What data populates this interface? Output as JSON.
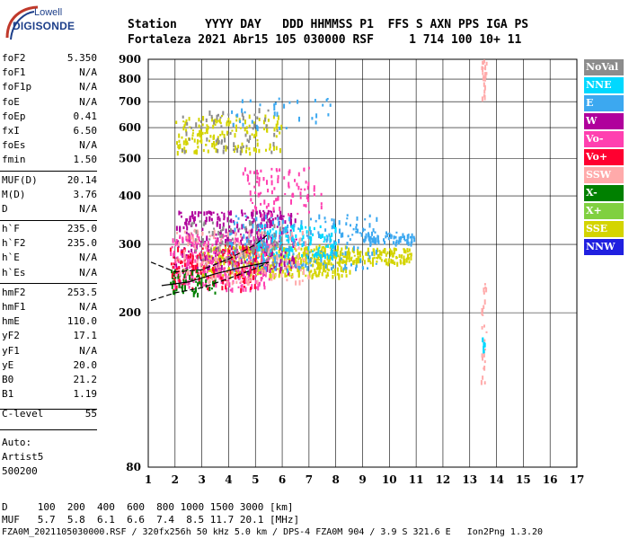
{
  "logo": {
    "top": "Lowell",
    "main": "DIGISONDE"
  },
  "header": {
    "line1": "Station    YYYY DAY   DDD HHMMSS P1  FFS S AXN PPS IGA PS",
    "line2": "Fortaleza 2021 Abr15 105 030000 RSF     1 714 100 10+ 11"
  },
  "params": {
    "group1": [
      {
        "name": "foF2",
        "value": "5.350"
      },
      {
        "name": "foF1",
        "value": "N/A"
      },
      {
        "name": "foF1p",
        "value": "N/A"
      },
      {
        "name": "foE",
        "value": "N/A"
      },
      {
        "name": "foEp",
        "value": "0.41"
      },
      {
        "name": "fxI",
        "value": "6.50"
      },
      {
        "name": "foEs",
        "value": "N/A"
      },
      {
        "name": "fmin",
        "value": "1.50"
      }
    ],
    "group2": [
      {
        "name": "MUF(D)",
        "value": "20.14"
      },
      {
        "name": "M(D)",
        "value": "3.76"
      },
      {
        "name": "D",
        "value": "N/A"
      }
    ],
    "group3": [
      {
        "name": "h`F",
        "value": "235.0"
      },
      {
        "name": "h`F2",
        "value": "235.0"
      },
      {
        "name": "h`E",
        "value": "N/A"
      },
      {
        "name": "h`Es",
        "value": "N/A"
      }
    ],
    "group4": [
      {
        "name": "hmF2",
        "value": "253.5"
      },
      {
        "name": "hmF1",
        "value": "N/A"
      },
      {
        "name": "hmE",
        "value": "110.0"
      },
      {
        "name": "yF2",
        "value": "17.1"
      },
      {
        "name": "yF1",
        "value": "N/A"
      },
      {
        "name": "yE",
        "value": "20.0"
      },
      {
        "name": "B0",
        "value": "21.2"
      },
      {
        "name": "B1",
        "value": "1.19"
      }
    ],
    "clevel": {
      "name": "C-level",
      "value": "55"
    },
    "auto": [
      "Auto:",
      "Artist5",
      "500200"
    ]
  },
  "legend": [
    {
      "label": "NoVal",
      "color": "#8c8c8c"
    },
    {
      "label": "NNE",
      "color": "#00d8ff"
    },
    {
      "label": "E",
      "color": "#3ca8f0"
    },
    {
      "label": "W",
      "color": "#b0009c"
    },
    {
      "label": "Vo-",
      "color": "#ff40b0"
    },
    {
      "label": "Vo+",
      "color": "#ff0030"
    },
    {
      "label": "SSW",
      "color": "#ffaaaa"
    },
    {
      "label": "X-",
      "color": "#008000"
    },
    {
      "label": "X+",
      "color": "#80d040"
    },
    {
      "label": "SSE",
      "color": "#d4d400"
    },
    {
      "label": "NNW",
      "color": "#2020e0"
    }
  ],
  "bottom": {
    "d_row": "D     100  200  400  600  800 1000 1500 3000 [km]",
    "muf_row": "MUF   5.7  5.8  6.1  6.6  7.4  8.5 11.7 20.1 [MHz]",
    "footer": "FZA0M_2021105030000.RSF / 320fx256h 50 kHz 5.0 km / DPS-4 FZA0M 904 / 3.9 S 321.6 E   Ion2Png 1.3.20"
  },
  "chart_data": {
    "type": "scatter",
    "xlim": [
      1,
      17
    ],
    "ylim": [
      80,
      900
    ],
    "x_ticks": [
      1,
      2,
      3,
      4,
      5,
      6,
      7,
      8,
      9,
      10,
      11,
      12,
      13,
      14,
      15,
      16,
      17
    ],
    "y_ticks": [
      80,
      200,
      300,
      400,
      500,
      600,
      700,
      800,
      900
    ],
    "y_scale": "log",
    "grid": true,
    "clusters": [
      {
        "color": "#d4d400",
        "x": [
          3.0,
          8.5
        ],
        "y": [
          250,
          300
        ],
        "n": 500
      },
      {
        "color": "#d4d400",
        "x": [
          8.5,
          10.8
        ],
        "y": [
          270,
          295
        ],
        "n": 120
      },
      {
        "color": "#b0009c",
        "x": [
          2.0,
          6.5
        ],
        "y": [
          255,
          370
        ],
        "n": 380
      },
      {
        "color": "#ff40b0",
        "x": [
          1.8,
          5.5
        ],
        "y": [
          230,
          320
        ],
        "n": 280
      },
      {
        "color": "#3ca8f0",
        "x": [
          4.0,
          9.5
        ],
        "y": [
          260,
          360
        ],
        "n": 220
      },
      {
        "color": "#00d8ff",
        "x": [
          5.0,
          8.0
        ],
        "y": [
          280,
          340
        ],
        "n": 120
      },
      {
        "color": "#3ca8f0",
        "x": [
          9.0,
          11.0
        ],
        "y": [
          305,
          325
        ],
        "n": 60
      },
      {
        "color": "#ff0030",
        "x": [
          1.8,
          5.0
        ],
        "y": [
          230,
          300
        ],
        "n": 140
      },
      {
        "color": "#008000",
        "x": [
          1.8,
          3.5
        ],
        "y": [
          225,
          260
        ],
        "n": 60
      },
      {
        "color": "#ffaaaa",
        "x": [
          2.0,
          7.0
        ],
        "y": [
          240,
          330
        ],
        "n": 150
      },
      {
        "color": "#8c8c8c",
        "x": [
          2.5,
          6.0
        ],
        "y": [
          270,
          350
        ],
        "n": 90
      },
      {
        "color": "#d4d400",
        "x": [
          2.0,
          6.0
        ],
        "y": [
          520,
          650
        ],
        "n": 160
      },
      {
        "color": "#8c8c8c",
        "x": [
          2.2,
          5.8
        ],
        "y": [
          520,
          680
        ],
        "n": 60
      },
      {
        "color": "#3ca8f0",
        "x": [
          4.0,
          7.8
        ],
        "y": [
          600,
          720
        ],
        "n": 35
      },
      {
        "color": "#ff40b0",
        "x": [
          4.5,
          7.5
        ],
        "y": [
          360,
          480
        ],
        "n": 90
      },
      {
        "color": "#ffaaaa",
        "x": [
          13.4,
          13.6
        ],
        "y": [
          720,
          900
        ],
        "n": 25
      },
      {
        "color": "#ffaaaa",
        "x": [
          13.4,
          13.6
        ],
        "y": [
          130,
          240
        ],
        "n": 25
      },
      {
        "color": "#00d8ff",
        "x": [
          13.45,
          13.55
        ],
        "y": [
          160,
          175
        ],
        "n": 8
      }
    ],
    "traces": [
      {
        "color": "#000000",
        "dash": true,
        "x": [
          1.1,
          2,
          3,
          4,
          5,
          5.5
        ],
        "y": [
          270,
          255,
          258,
          275,
          300,
          320
        ]
      },
      {
        "color": "#000000",
        "dash": true,
        "x": [
          1.1,
          2,
          3,
          4,
          5,
          5.5
        ],
        "y": [
          215,
          225,
          232,
          245,
          260,
          270
        ]
      },
      {
        "color": "#000000",
        "dash": false,
        "x": [
          1.5,
          2.5,
          3.5,
          4.5,
          5.5
        ],
        "y": [
          235,
          240,
          252,
          262,
          270
        ]
      }
    ]
  }
}
